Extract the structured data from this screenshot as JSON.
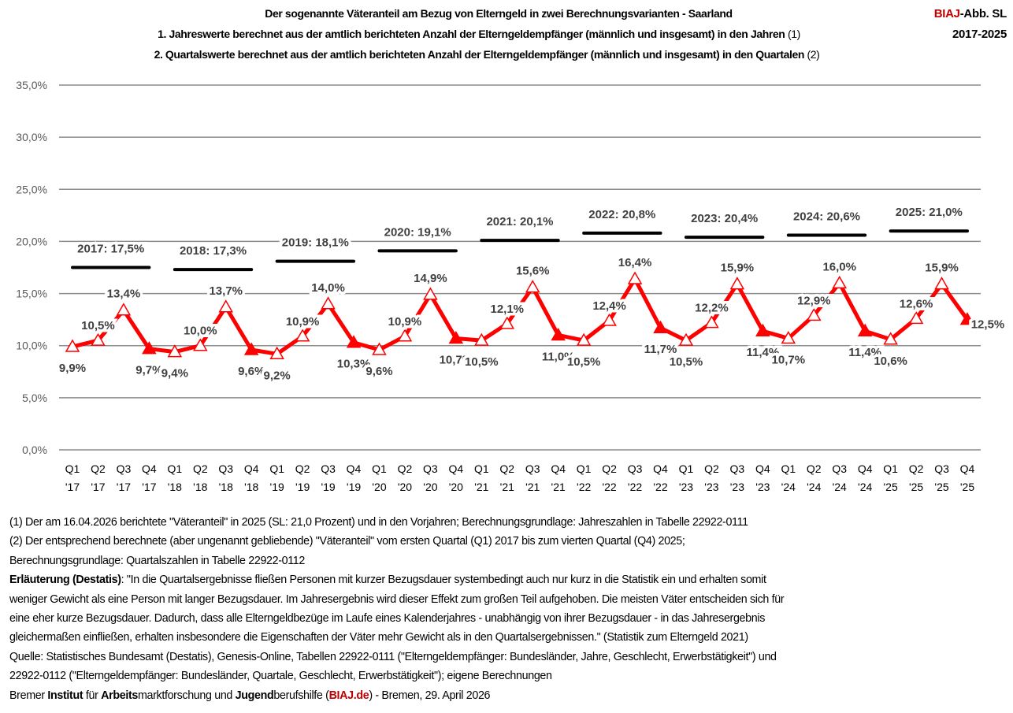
{
  "header": {
    "title": "Der sogenannte Väteranteil am Bezug von Elterngeld in zwei Berechnungsvarianten - Saarland",
    "line1": "1. Jahreswerte berechnet aus der amtlich berichteten Anzahl der Elterngeldempfänger (männlich und insgesamt) in den Jahren",
    "line1_ref": "(1)",
    "line2": "2. Quartalswerte berechnet aus der amtlich berichteten Anzahl der Elterngeldempfänger (männlich und insgesamt) in den Quartalen",
    "line2_ref": "(2)",
    "brand": "BIAJ",
    "fig": "-Abb. SL",
    "years": "2017-2025"
  },
  "chart_data": {
    "type": "line",
    "ylim": [
      0,
      35
    ],
    "yticks": [
      "0,0%",
      "5,0%",
      "10,0%",
      "15,0%",
      "20,0%",
      "25,0%",
      "30,0%",
      "35,0%"
    ],
    "grid": true,
    "categories": [
      "Q1 '17",
      "Q2 '17",
      "Q3 '17",
      "Q4 '17",
      "Q1 '18",
      "Q2 '18",
      "Q3 '18",
      "Q4 '18",
      "Q1 '19",
      "Q2 '19",
      "Q3 '19",
      "Q4 '19",
      "Q1 '20",
      "Q2 '20",
      "Q3 '20",
      "Q4 '20",
      "Q1 '21",
      "Q2 '21",
      "Q3 '21",
      "Q4 '21",
      "Q1 '22",
      "Q2 '22",
      "Q3 '22",
      "Q4 '22",
      "Q1 '23",
      "Q2 '23",
      "Q3 '23",
      "Q4 '23",
      "Q1 '24",
      "Q2 '24",
      "Q3 '24",
      "Q4 '24",
      "Q1 '25",
      "Q2 '25",
      "Q3 '25",
      "Q4 '25"
    ],
    "quarterly": {
      "values": [
        9.9,
        10.5,
        13.4,
        9.7,
        9.4,
        10.0,
        13.7,
        9.6,
        9.2,
        10.9,
        14.0,
        10.3,
        9.6,
        10.9,
        14.9,
        10.7,
        10.5,
        12.1,
        15.6,
        11.0,
        10.5,
        12.4,
        16.4,
        11.7,
        10.5,
        12.2,
        15.9,
        11.4,
        10.7,
        12.9,
        16.0,
        11.4,
        10.6,
        12.6,
        15.9,
        12.5
      ],
      "labels": [
        "9,9%",
        "10,5%",
        "13,4%",
        "9,7%",
        "9,4%",
        "10,0%",
        "13,7%",
        "9,6%",
        "9,2%",
        "10,9%",
        "14,0%",
        "10,3%",
        "9,6%",
        "10,9%",
        "14,9%",
        "10,7%",
        "10,5%",
        "12,1%",
        "15,6%",
        "11,0%",
        "10,5%",
        "12,4%",
        "16,4%",
        "11,7%",
        "10,5%",
        "12,2%",
        "15,9%",
        "11,4%",
        "10,7%",
        "12,9%",
        "16,0%",
        "11,4%",
        "10,6%",
        "12,6%",
        "15,9%",
        "12,5%"
      ],
      "color": "#ff0000"
    },
    "annual": [
      {
        "year": "2017",
        "value": 17.5,
        "label": "2017:  17,5%"
      },
      {
        "year": "2018",
        "value": 17.3,
        "label": "2018: 17,3%"
      },
      {
        "year": "2019",
        "value": 18.1,
        "label": "2019: 18,1%"
      },
      {
        "year": "2020",
        "value": 19.1,
        "label": "2020: 19,1%"
      },
      {
        "year": "2021",
        "value": 20.1,
        "label": "2021: 20,1%"
      },
      {
        "year": "2022",
        "value": 20.8,
        "label": "2022: 20,8%"
      },
      {
        "year": "2023",
        "value": 20.4,
        "label": "2023: 20,4%"
      },
      {
        "year": "2024",
        "value": 20.6,
        "label": "2024: 20,6%"
      },
      {
        "year": "2025",
        "value": 21.0,
        "label": "2025: 21,0%"
      }
    ]
  },
  "notes": {
    "n1": "(1) Der am 16.04.2026 berichtete \"Väteranteil\" in 2025 (SL: 21,0 Prozent) und in den Vorjahren; Berechnungsgrundlage: Jahreszahlen in Tabelle  22922-0111",
    "n2": "(2) Der entsprechend berechnete (aber ungenannt gebliebende) \"Väteranteil\" vom ersten Quartal (Q1) 2017 bis zum vierten Quartal (Q4) 2025;",
    "n3": "Berechnungsgrundlage: Quartalszahlen in Tabelle 22922-0112",
    "expl_label": "Erläuterung (Destatis)",
    "expl1": ": \"In die Quartalsergebnisse fließen Personen mit kurzer Bezugsdauer systembedingt auch nur kurz in die Statistik ein und erhalten somit",
    "expl2": "weniger Gewicht als eine Person mit langer Bezugsdauer. Im Jahresergebnis wird dieser Effekt zum großen Teil aufgehoben. Die meisten Väter entscheiden sich für",
    "expl3": "eine eher kurze Bezugsdauer. Dadurch, dass alle Elterngeldbezüge im Laufe eines Kalenderjahres - unabhängig von ihrer Bezugsdauer - in das Jahresergebnis",
    "expl4": "gleichermaßen einfließen, erhalten insbesondere die Eigenschaften der Väter mehr Gewicht als in den Quartalsergebnissen.\" (Statistik zum Elterngeld  2021)",
    "src1": "Quelle: Statistisches Bundesamt (Destatis), Genesis-Online, Tabellen 22922-0111 (\"Elterngeldempfänger: Bundesländer, Jahre, Geschlecht, Erwerbstätigkeit\") und",
    "src2": "22922-0112 (\"Elterngeldempfänger: Bundesländer, Quartale, Geschlecht, Erwerbstätigkeit\"); eigene Berechnungen",
    "f_a": "Bremer ",
    "f_b": "Institut",
    "f_c": " für ",
    "f_d": "Arbeits",
    "f_e": "marktforschung und ",
    "f_f": "Jugend",
    "f_g": "berufshilfe (",
    "f_h": "BIAJ.de",
    "f_i": ") - Bremen, 29. April 2026"
  }
}
